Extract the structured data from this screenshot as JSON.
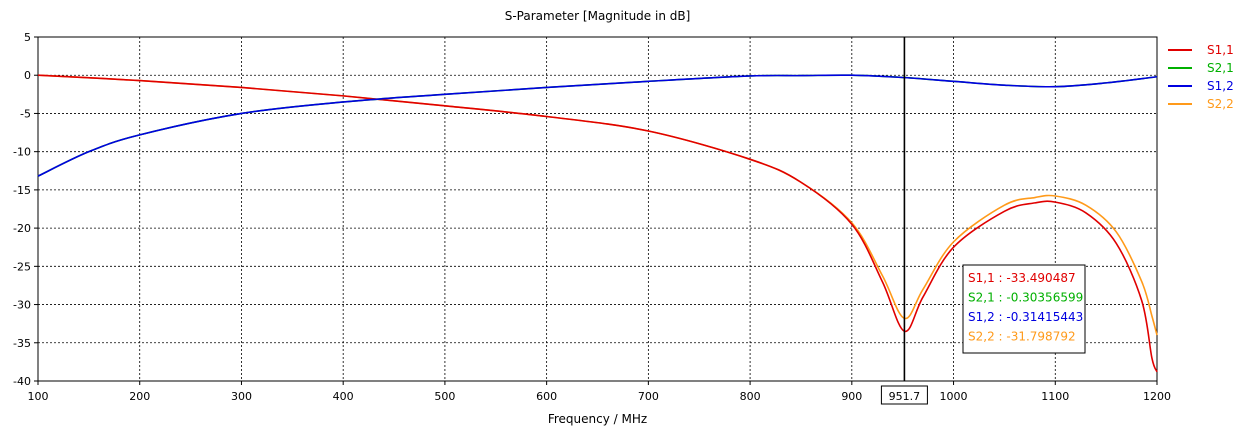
{
  "chart_data": {
    "type": "line",
    "title": "S-Parameter [Magnitude in dB]",
    "xlabel": "Frequency / MHz",
    "ylabel": "",
    "xlim": [
      100,
      1200
    ],
    "ylim": [
      -40,
      5
    ],
    "xticks": [
      100,
      200,
      300,
      400,
      500,
      600,
      700,
      800,
      900,
      1000,
      1100,
      1200
    ],
    "yticks": [
      5,
      0,
      -5,
      -10,
      -15,
      -20,
      -25,
      -30,
      -35,
      -40
    ],
    "grid": true,
    "legend_position": "right",
    "series": [
      {
        "name": "S1,1",
        "color": "#e00000",
        "points": [
          [
            100,
            0
          ],
          [
            200,
            -0.7
          ],
          [
            300,
            -1.6
          ],
          [
            400,
            -2.7
          ],
          [
            500,
            -4.0
          ],
          [
            600,
            -5.4
          ],
          [
            700,
            -7.3
          ],
          [
            800,
            -11.0
          ],
          [
            850,
            -14.0
          ],
          [
            900,
            -19.5
          ],
          [
            930,
            -27.0
          ],
          [
            951.7,
            -33.49
          ],
          [
            970,
            -29.0
          ],
          [
            1000,
            -22.5
          ],
          [
            1050,
            -17.8
          ],
          [
            1080,
            -16.7
          ],
          [
            1100,
            -16.6
          ],
          [
            1130,
            -18.0
          ],
          [
            1160,
            -22.0
          ],
          [
            1185,
            -29.5
          ],
          [
            1195,
            -37.0
          ],
          [
            1200,
            -38.8
          ]
        ]
      },
      {
        "name": "S2,1",
        "color": "#00b000",
        "points": [
          [
            100,
            -13.2
          ],
          [
            150,
            -10.0
          ],
          [
            200,
            -7.8
          ],
          [
            300,
            -5.0
          ],
          [
            400,
            -3.5
          ],
          [
            500,
            -2.5
          ],
          [
            600,
            -1.6
          ],
          [
            700,
            -0.8
          ],
          [
            800,
            -0.1
          ],
          [
            850,
            -0.05
          ],
          [
            900,
            0.0
          ],
          [
            951.7,
            -0.3036
          ],
          [
            1000,
            -0.8
          ],
          [
            1050,
            -1.3
          ],
          [
            1100,
            -1.5
          ],
          [
            1150,
            -1.0
          ],
          [
            1200,
            -0.2
          ]
        ]
      },
      {
        "name": "S1,2",
        "color": "#0000e0",
        "points": [
          [
            100,
            -13.2
          ],
          [
            150,
            -10.0
          ],
          [
            200,
            -7.8
          ],
          [
            300,
            -5.0
          ],
          [
            400,
            -3.5
          ],
          [
            500,
            -2.5
          ],
          [
            600,
            -1.6
          ],
          [
            700,
            -0.8
          ],
          [
            800,
            -0.1
          ],
          [
            850,
            -0.05
          ],
          [
            900,
            0.0
          ],
          [
            951.7,
            -0.3142
          ],
          [
            1000,
            -0.8
          ],
          [
            1050,
            -1.3
          ],
          [
            1100,
            -1.5
          ],
          [
            1150,
            -1.0
          ],
          [
            1200,
            -0.2
          ]
        ]
      },
      {
        "name": "S2,2",
        "color": "#ff9a1a",
        "points": [
          [
            100,
            0
          ],
          [
            200,
            -0.7
          ],
          [
            300,
            -1.6
          ],
          [
            400,
            -2.7
          ],
          [
            500,
            -4.0
          ],
          [
            600,
            -5.4
          ],
          [
            700,
            -7.3
          ],
          [
            800,
            -11.0
          ],
          [
            850,
            -14.0
          ],
          [
            900,
            -19.3
          ],
          [
            930,
            -26.2
          ],
          [
            951.7,
            -31.8
          ],
          [
            970,
            -28.0
          ],
          [
            1000,
            -21.8
          ],
          [
            1050,
            -17.0
          ],
          [
            1080,
            -16.0
          ],
          [
            1100,
            -15.8
          ],
          [
            1130,
            -17.0
          ],
          [
            1160,
            -20.5
          ],
          [
            1185,
            -27.0
          ],
          [
            1195,
            -31.5
          ],
          [
            1200,
            -34.0
          ]
        ]
      }
    ],
    "marker": {
      "x": 951.7,
      "x_label": "951.7",
      "readouts": [
        {
          "label": "S1,1 : -33.490487",
          "color": "#e00000"
        },
        {
          "label": "S2,1 : -0.30356599",
          "color": "#00b000"
        },
        {
          "label": "S1,2 : -0.31415443",
          "color": "#0000e0"
        },
        {
          "label": "S2,2 : -31.798792",
          "color": "#ff9a1a"
        }
      ]
    }
  }
}
